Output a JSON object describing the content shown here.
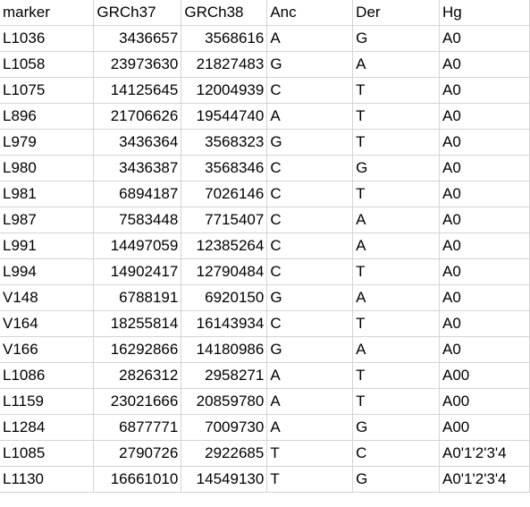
{
  "sheet": {
    "headers": [
      "marker",
      "GRCh37",
      "GRCh38",
      "Anc",
      "Der",
      "Hg"
    ],
    "rows": [
      [
        "L1036",
        "3436657",
        "3568616",
        "A",
        "G",
        "A0"
      ],
      [
        "L1058",
        "23973630",
        "21827483",
        "G",
        "A",
        "A0"
      ],
      [
        "L1075",
        "14125645",
        "12004939",
        "C",
        "T",
        "A0"
      ],
      [
        "L896",
        "21706626",
        "19544740",
        "A",
        "T",
        "A0"
      ],
      [
        "L979",
        "3436364",
        "3568323",
        "G",
        "T",
        "A0"
      ],
      [
        "L980",
        "3436387",
        "3568346",
        "C",
        "G",
        "A0"
      ],
      [
        "L981",
        "6894187",
        "7026146",
        "C",
        "T",
        "A0"
      ],
      [
        "L987",
        "7583448",
        "7715407",
        "C",
        "A",
        "A0"
      ],
      [
        "L991",
        "14497059",
        "12385264",
        "C",
        "A",
        "A0"
      ],
      [
        "L994",
        "14902417",
        "12790484",
        "C",
        "T",
        "A0"
      ],
      [
        "V148",
        "6788191",
        "6920150",
        "G",
        "A",
        "A0"
      ],
      [
        "V164",
        "18255814",
        "16143934",
        "C",
        "T",
        "A0"
      ],
      [
        "V166",
        "16292866",
        "14180986",
        "G",
        "A",
        "A0"
      ],
      [
        "L1086",
        "2826312",
        "2958271",
        "A",
        "T",
        "A00"
      ],
      [
        "L1159",
        "23021666",
        "20859780",
        "A",
        "T",
        "A00"
      ],
      [
        "L1284",
        "6877771",
        "7009730",
        "A",
        "G",
        "A00"
      ],
      [
        "L1085",
        "2790726",
        "2922685",
        "T",
        "C",
        "A0'1'2'3'4"
      ],
      [
        "L1130",
        "16661010",
        "14549130",
        "T",
        "G",
        "A0'1'2'3'4"
      ]
    ]
  }
}
